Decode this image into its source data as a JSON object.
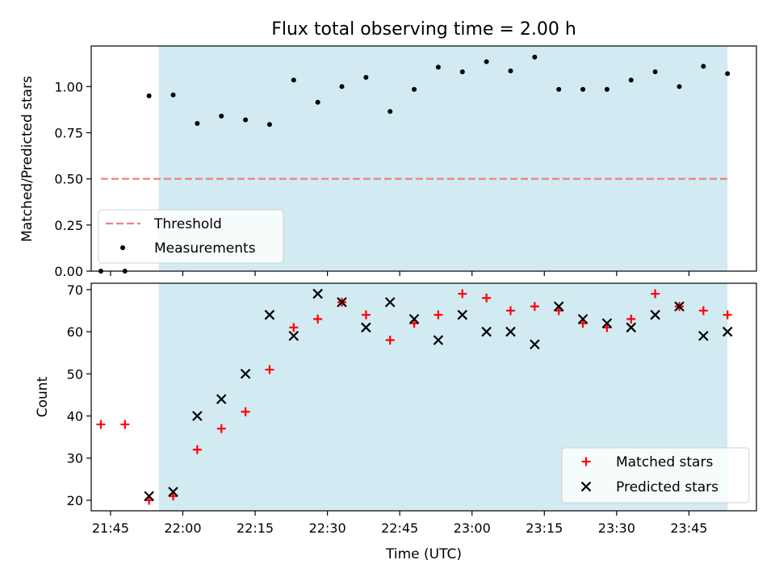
{
  "title": "Flux total observing time = 2.00 h",
  "chart_data": [
    {
      "type": "scatter",
      "ylabel": "Matched/Predicted stars",
      "ylim": [
        0.0,
        1.22
      ],
      "yticks": [
        0.0,
        0.25,
        0.5,
        0.75,
        1.0
      ],
      "ytick_labels": [
        "0.00",
        "0.25",
        "0.50",
        "0.75",
        "1.00"
      ],
      "xlim": [
        "21:41",
        "23:59"
      ],
      "shaded_span": [
        "21:55",
        "23:53"
      ],
      "shade_color": "#add8e6",
      "legend_position": "lower-left",
      "series": [
        {
          "name": "Threshold",
          "kind": "dashed-line",
          "color": "#f08080",
          "x": [
            "21:43",
            "23:53"
          ],
          "y": [
            0.5,
            0.5
          ]
        },
        {
          "name": "Measurements",
          "kind": "dots",
          "color": "#000000",
          "x": [
            "21:43",
            "21:48",
            "21:53",
            "21:58",
            "22:03",
            "22:08",
            "22:13",
            "22:18",
            "22:23",
            "22:28",
            "22:33",
            "22:38",
            "22:43",
            "22:48",
            "22:53",
            "22:58",
            "23:03",
            "23:08",
            "23:13",
            "23:18",
            "23:23",
            "23:28",
            "23:33",
            "23:38",
            "23:43",
            "23:48",
            "23:53"
          ],
          "y": [
            0.0,
            0.0,
            0.95,
            0.955,
            0.8,
            0.84,
            0.82,
            0.795,
            1.035,
            0.915,
            1.0,
            1.05,
            0.865,
            0.985,
            1.105,
            1.08,
            1.135,
            1.085,
            1.16,
            0.985,
            0.985,
            0.985,
            1.035,
            1.08,
            1.0,
            1.11,
            1.07
          ]
        }
      ]
    },
    {
      "type": "scatter",
      "ylabel": "Count",
      "xlabel": "Time (UTC)",
      "ylim": [
        17.5,
        71.5
      ],
      "yticks": [
        20,
        30,
        40,
        50,
        60,
        70
      ],
      "ytick_labels": [
        "20",
        "30",
        "40",
        "50",
        "60",
        "70"
      ],
      "xticks": [
        "21:45",
        "22:00",
        "22:15",
        "22:30",
        "22:45",
        "23:00",
        "23:15",
        "23:30",
        "23:45"
      ],
      "xlim": [
        "21:41",
        "23:59"
      ],
      "shaded_span": [
        "21:55",
        "23:53"
      ],
      "shade_color": "#add8e6",
      "legend_position": "lower-right",
      "series": [
        {
          "name": "Matched stars",
          "marker": "plus",
          "color": "#ff0000",
          "x": [
            "21:43",
            "21:48",
            "21:53",
            "21:58",
            "22:03",
            "22:08",
            "22:13",
            "22:18",
            "22:23",
            "22:28",
            "22:33",
            "22:38",
            "22:43",
            "22:48",
            "22:53",
            "22:58",
            "23:03",
            "23:08",
            "23:13",
            "23:18",
            "23:23",
            "23:28",
            "23:33",
            "23:38",
            "23:43",
            "23:48",
            "23:53"
          ],
          "y": [
            38,
            38,
            20,
            21,
            32,
            37,
            41,
            51,
            61,
            63,
            67,
            64,
            58,
            62,
            64,
            69,
            68,
            65,
            66,
            65,
            62,
            61,
            63,
            69,
            66,
            65,
            64
          ]
        },
        {
          "name": "Predicted stars",
          "marker": "x",
          "color": "#000000",
          "x": [
            "21:53",
            "21:58",
            "22:03",
            "22:08",
            "22:13",
            "22:18",
            "22:23",
            "22:28",
            "22:33",
            "22:38",
            "22:43",
            "22:48",
            "22:53",
            "22:58",
            "23:03",
            "23:08",
            "23:13",
            "23:18",
            "23:23",
            "23:28",
            "23:33",
            "23:38",
            "23:43",
            "23:48",
            "23:53"
          ],
          "y": [
            21,
            22,
            40,
            44,
            50,
            64,
            59,
            69,
            67,
            61,
            67,
            63,
            58,
            64,
            60,
            60,
            57,
            66,
            63,
            62,
            61,
            64,
            66,
            59,
            60
          ]
        }
      ]
    }
  ]
}
